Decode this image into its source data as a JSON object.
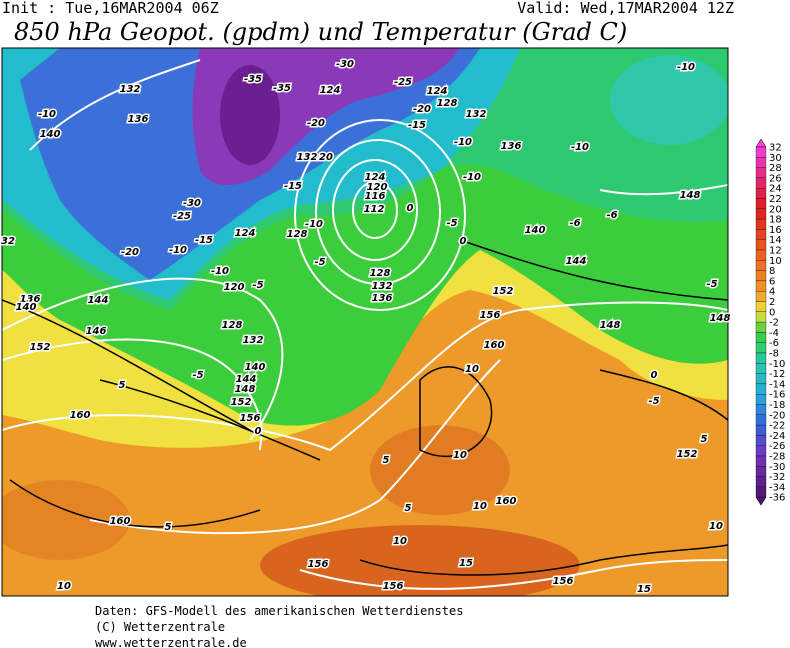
{
  "header": {
    "init": "Init : Tue,16MAR2004 06Z",
    "valid": "Valid: Wed,17MAR2004 12Z",
    "title": "850 hPa Geopot. (gpdm) und Temperatur (Grad C)"
  },
  "colorbar": {
    "labels": [
      32,
      30,
      28,
      26,
      24,
      22,
      20,
      18,
      16,
      14,
      12,
      10,
      8,
      6,
      4,
      2,
      0,
      -2,
      -4,
      -6,
      -8,
      -10,
      -12,
      -14,
      -16,
      -18,
      -20,
      -22,
      -24,
      -26,
      -28,
      -30,
      -32,
      -34,
      -36
    ]
  },
  "map_labels": [
    132,
    136,
    140,
    -10,
    -35,
    -35,
    -30,
    -25,
    124,
    124,
    128,
    -20,
    -15,
    132,
    -20,
    -10,
    136,
    -10,
    -10,
    132,
    20,
    -15,
    124,
    120,
    116,
    112,
    0,
    -25,
    -30,
    -5,
    -10,
    -6,
    -6,
    148,
    124,
    128,
    -10,
    -10,
    -15,
    -20,
    0,
    140,
    32,
    -5,
    128,
    132,
    136,
    144,
    -10,
    -5,
    120,
    136,
    140,
    144,
    152,
    128,
    132,
    156,
    148,
    146,
    160,
    148,
    152,
    -5,
    140,
    -5,
    144,
    148,
    152,
    10,
    0,
    -5,
    156,
    0,
    160,
    5,
    5,
    152,
    10,
    5,
    5,
    10,
    160,
    160,
    5,
    10,
    10,
    156,
    15,
    156,
    156,
    10,
    15
  ],
  "footer": [
    "Daten: GFS-Modell des amerikanischen Wetterdienstes",
    "(C) Wetterzentrale",
    "www.wetterzentrale.de"
  ]
}
